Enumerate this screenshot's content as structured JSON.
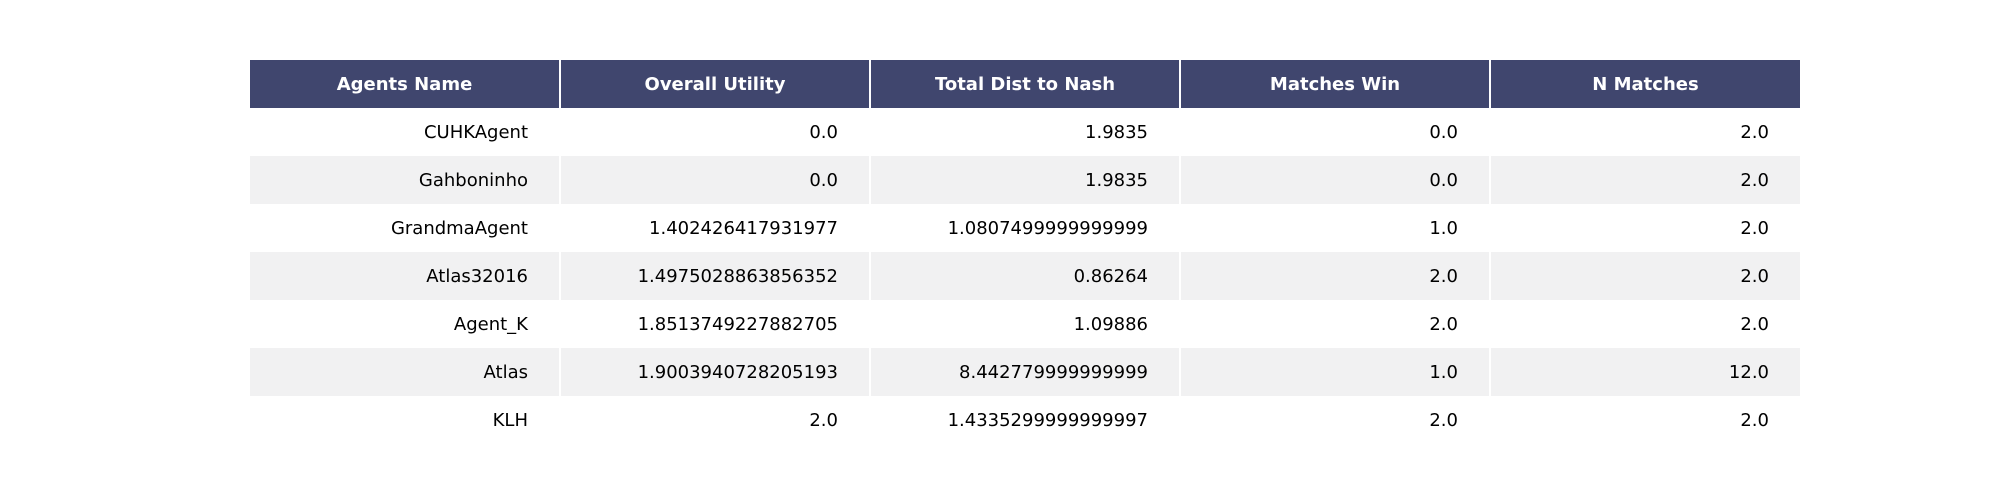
{
  "chart_data": {
    "type": "table",
    "columns": [
      "Agents Name",
      "Overall Utility",
      "Total Dist to Nash",
      "Matches Win",
      "N Matches"
    ],
    "rows": [
      [
        "CUHKAgent",
        "0.0",
        "1.9835",
        "0.0",
        "2.0"
      ],
      [
        "Gahboninho",
        "0.0",
        "1.9835",
        "0.0",
        "2.0"
      ],
      [
        "GrandmaAgent",
        "1.402426417931977",
        "1.0807499999999999",
        "1.0",
        "2.0"
      ],
      [
        "Atlas32016",
        "1.4975028863856352",
        "0.86264",
        "2.0",
        "2.0"
      ],
      [
        "Agent_K",
        "1.8513749227882705",
        "1.09886",
        "2.0",
        "2.0"
      ],
      [
        "Atlas",
        "1.9003940728205193",
        "8.442779999999999",
        "1.0",
        "12.0"
      ],
      [
        "KLH",
        "2.0",
        "1.4335299999999997",
        "2.0",
        "2.0"
      ]
    ]
  },
  "colors": {
    "header_bg": "#40466e",
    "header_text": "#ffffff",
    "row_alt_bg": "#f1f1f2",
    "row_bg": "#ffffff"
  }
}
